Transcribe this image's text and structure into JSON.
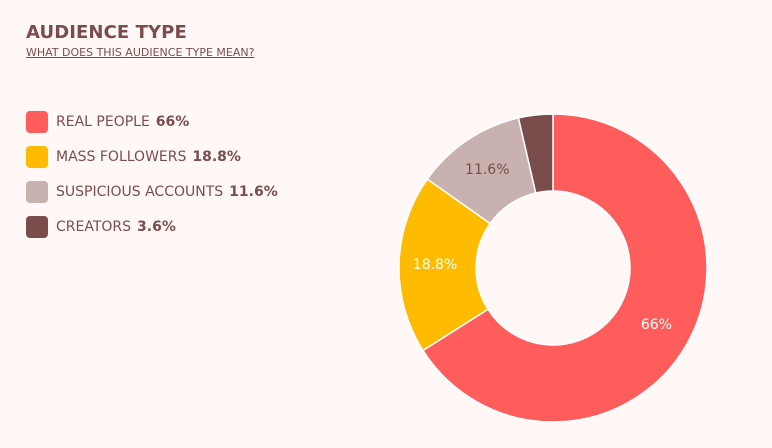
{
  "header": {
    "title": "AUDIENCE TYPE",
    "link": "WHAT DOES THIS AUDIENCE TYPE MEAN?"
  },
  "colors": {
    "text": "#7a4d4c",
    "background": "#fff8f6"
  },
  "chart_data": {
    "type": "pie",
    "variant": "donut",
    "title": "",
    "legend_position": "left",
    "series": [
      {
        "name": "REAL PEOPLE",
        "value": 66,
        "label": "66%",
        "color": "#ff5d5b",
        "label_color": "#ffffff"
      },
      {
        "name": "MASS FOLLOWERS",
        "value": 18.8,
        "label": "18.8%",
        "color": "#ffbb00",
        "label_color": "#ffffff"
      },
      {
        "name": "SUSPICIOUS ACCOUNTS",
        "value": 11.6,
        "label": "11.6%",
        "color": "#c8b1ae",
        "label_color": "#7a4d4c"
      },
      {
        "name": "CREATORS",
        "value": 3.6,
        "label": "3.6%",
        "color": "#7a4d4c",
        "label_color": "#ffffff"
      }
    ]
  }
}
